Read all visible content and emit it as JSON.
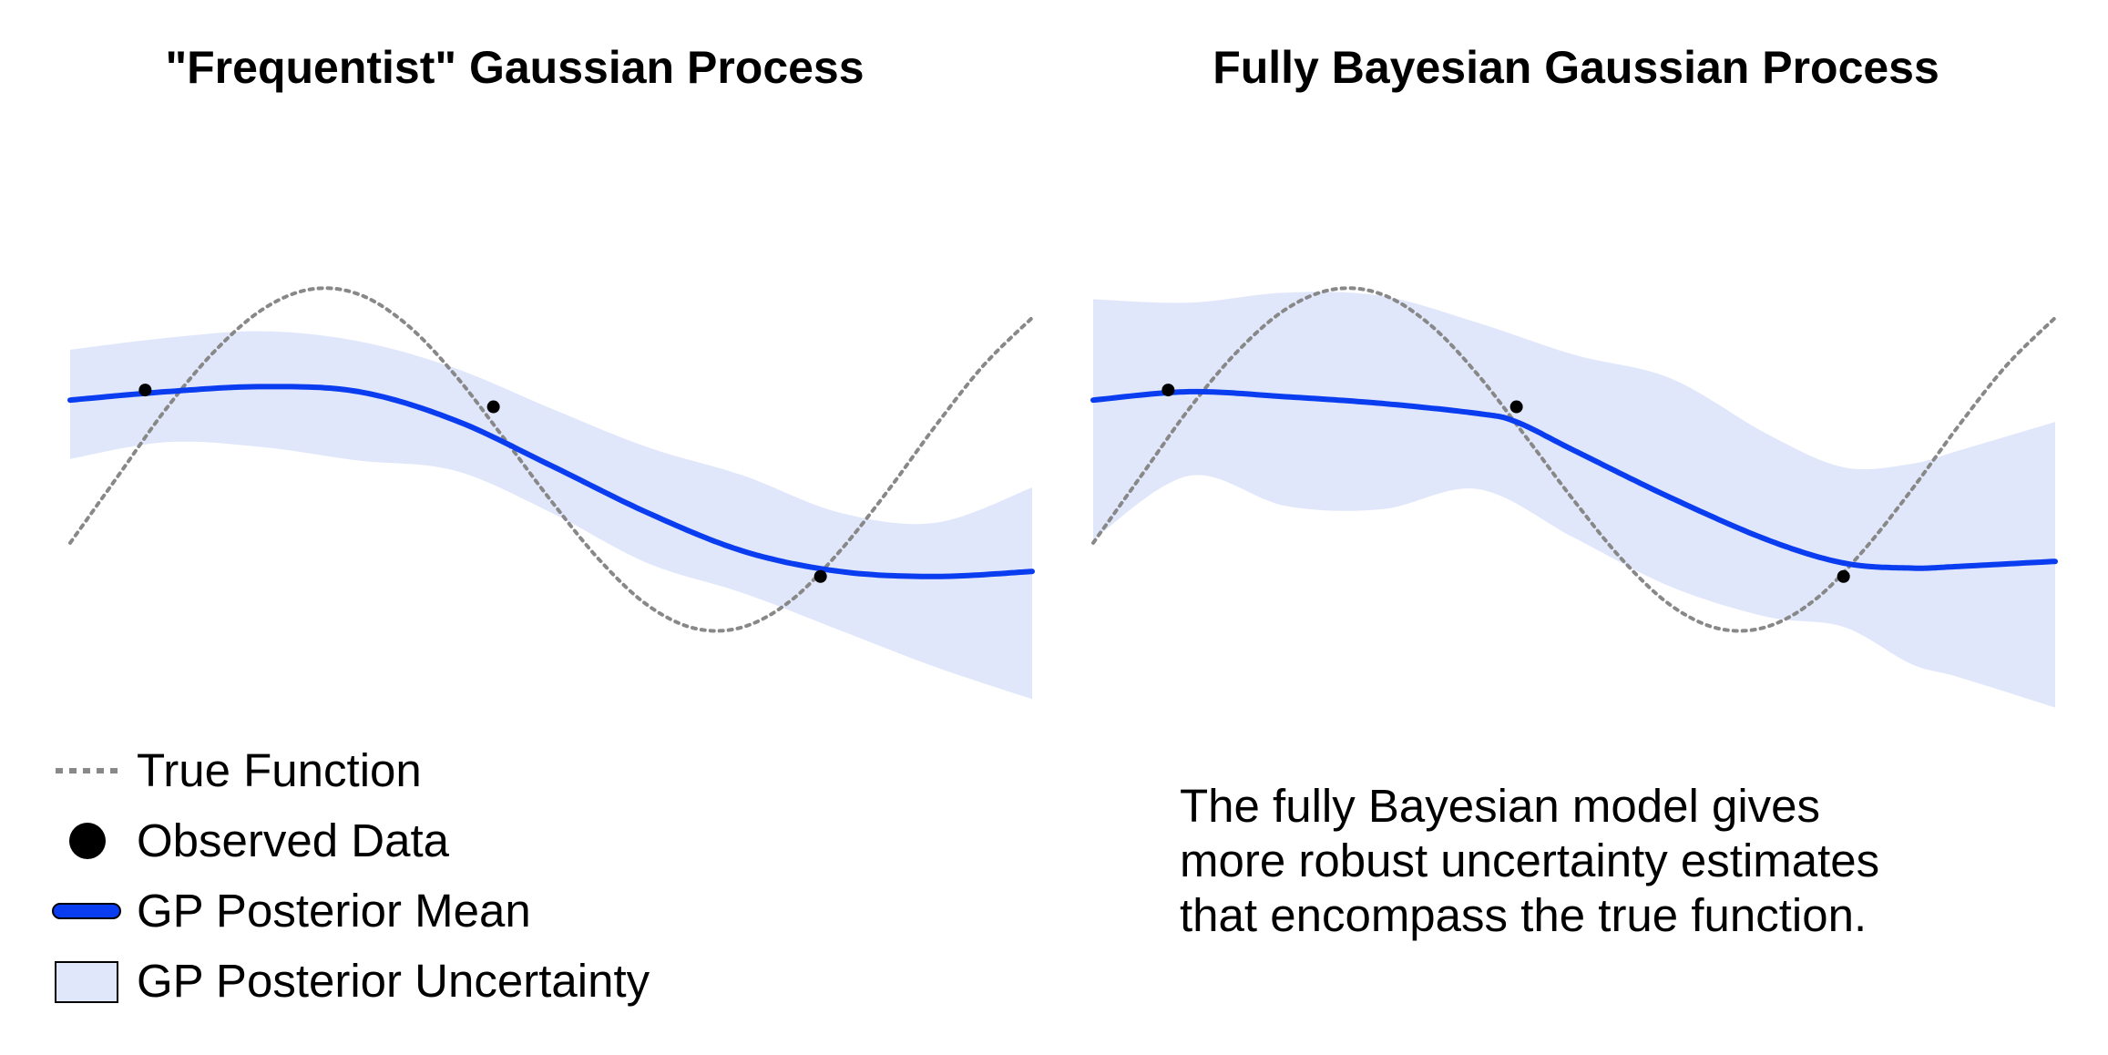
{
  "chart_data": [
    {
      "type": "line",
      "title": "\"Frequentist\" Gaussian Process",
      "xlim": [
        0,
        1
      ],
      "ylim": [
        -1.6,
        1.6
      ],
      "axes_visible": false,
      "true_function": {
        "x": [
          0,
          0.05,
          0.1,
          0.15,
          0.2,
          0.25,
          0.3,
          0.35,
          0.4,
          0.45,
          0.5,
          0.55,
          0.6,
          0.65,
          0.7,
          0.75,
          0.8,
          0.85,
          0.9,
          0.95,
          1.0
        ],
        "y": [
          -0.52,
          -0.12,
          0.28,
          0.62,
          0.87,
          0.99,
          0.96,
          0.78,
          0.48,
          0.11,
          -0.27,
          -0.62,
          -0.89,
          -1.03,
          -1.02,
          -0.86,
          -0.57,
          -0.21,
          0.18,
          0.54,
          0.82
        ]
      },
      "observed": {
        "x": [
          0.078,
          0.44,
          0.78
        ],
        "y": [
          0.39,
          0.29,
          -0.72
        ]
      },
      "mean": {
        "x": [
          0,
          0.1,
          0.2,
          0.3,
          0.4,
          0.5,
          0.6,
          0.7,
          0.8,
          0.9,
          1.0
        ],
        "y": [
          0.33,
          0.38,
          0.41,
          0.38,
          0.21,
          -0.06,
          -0.34,
          -0.57,
          -0.69,
          -0.72,
          -0.69
        ]
      },
      "band": {
        "x": [
          0,
          0.1,
          0.2,
          0.3,
          0.4,
          0.5,
          0.6,
          0.7,
          0.8,
          0.9,
          1.0
        ],
        "upper": [
          0.63,
          0.7,
          0.74,
          0.68,
          0.52,
          0.28,
          0.05,
          -0.12,
          -0.34,
          -0.4,
          -0.19
        ],
        "lower": [
          -0.02,
          0.08,
          0.05,
          -0.03,
          -0.09,
          -0.34,
          -0.64,
          -0.82,
          -1.04,
          -1.26,
          -1.45
        ]
      }
    },
    {
      "type": "line",
      "title": "Fully Bayesian Gaussian Process",
      "xlim": [
        0,
        1
      ],
      "ylim": [
        -1.6,
        1.6
      ],
      "axes_visible": false,
      "true_function": {
        "x": [
          0,
          0.05,
          0.1,
          0.15,
          0.2,
          0.25,
          0.3,
          0.35,
          0.4,
          0.45,
          0.5,
          0.55,
          0.6,
          0.65,
          0.7,
          0.75,
          0.8,
          0.85,
          0.9,
          0.95,
          1.0
        ],
        "y": [
          -0.52,
          -0.12,
          0.28,
          0.62,
          0.87,
          0.99,
          0.96,
          0.78,
          0.48,
          0.11,
          -0.27,
          -0.62,
          -0.89,
          -1.03,
          -1.02,
          -0.86,
          -0.57,
          -0.21,
          0.18,
          0.54,
          0.82
        ]
      },
      "observed": {
        "x": [
          0.078,
          0.44,
          0.78
        ],
        "y": [
          0.39,
          0.29,
          -0.72
        ]
      },
      "mean": {
        "x": [
          0,
          0.1,
          0.2,
          0.3,
          0.4,
          0.44,
          0.5,
          0.6,
          0.7,
          0.78,
          0.85,
          0.9,
          1.0
        ],
        "y": [
          0.33,
          0.38,
          0.35,
          0.31,
          0.25,
          0.2,
          0.03,
          -0.25,
          -0.5,
          -0.64,
          -0.67,
          -0.66,
          -0.63
        ]
      },
      "band": {
        "x": [
          0,
          0.1,
          0.2,
          0.3,
          0.4,
          0.5,
          0.6,
          0.7,
          0.78,
          0.85,
          0.9,
          1.0
        ],
        "upper": [
          0.93,
          0.91,
          0.97,
          0.95,
          0.79,
          0.6,
          0.46,
          0.13,
          -0.07,
          -0.05,
          0.03,
          0.2
        ],
        "lower": [
          -0.5,
          -0.12,
          -0.3,
          -0.32,
          -0.2,
          -0.49,
          -0.78,
          -0.96,
          -1.02,
          -1.24,
          -1.32,
          -1.5
        ]
      }
    }
  ],
  "legend": {
    "items": [
      {
        "label": "True Function",
        "kind": "dotted-line"
      },
      {
        "label": "Observed Data",
        "kind": "dot"
      },
      {
        "label": "GP Posterior Mean",
        "kind": "line"
      },
      {
        "label": "GP Posterior Uncertainty",
        "kind": "patch"
      }
    ]
  },
  "note": {
    "lines": [
      "The fully Bayesian model gives",
      "more robust uncertainty estimates",
      "that encompass the true function."
    ]
  },
  "colors": {
    "mean": "#0a3cf0",
    "band": "#e1e7fb",
    "true_function": "#888888",
    "observed": "#000000"
  }
}
